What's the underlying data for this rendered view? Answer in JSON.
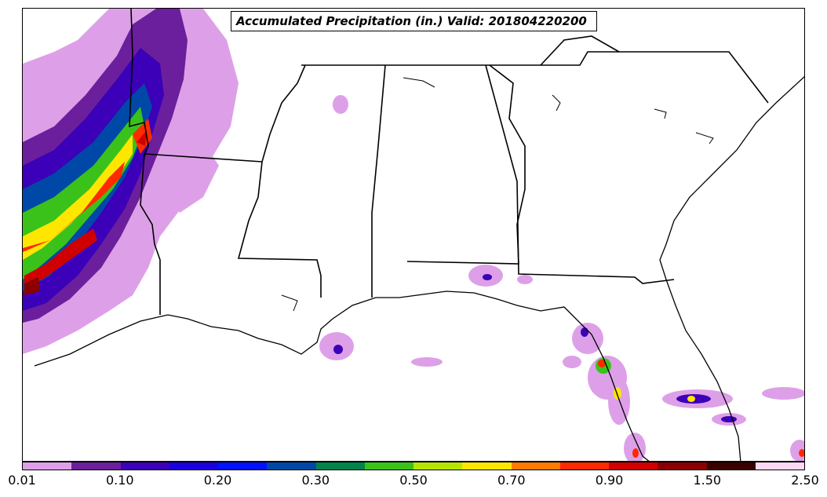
{
  "title": "Accumulated Precipitation (in.) Valid: 201804220200",
  "colorbar": {
    "colors": [
      "#dda0e8",
      "#6b1f9c",
      "#3b00b8",
      "#1b00e0",
      "#0012ff",
      "#0048a8",
      "#00844a",
      "#3ac21a",
      "#b6e600",
      "#ffe600",
      "#ff7a00",
      "#ff2a00",
      "#d10000",
      "#8a0000",
      "#3a0000",
      "#fbd8f4"
    ],
    "tick_labels": [
      "0.01",
      "0.10",
      "0.20",
      "0.30",
      "0.50",
      "0.70",
      "0.90",
      "1.50",
      "2.50"
    ]
  }
}
